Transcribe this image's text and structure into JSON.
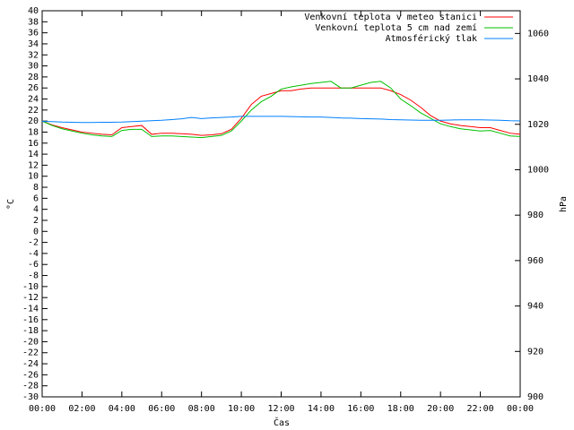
{
  "chart_data": {
    "type": "line",
    "x_label": "Čas",
    "y_label": "°C",
    "y2_label": "hPa",
    "x": [
      0,
      0.5,
      1,
      1.5,
      2,
      2.5,
      3,
      3.5,
      4,
      4.5,
      5,
      5.5,
      6,
      6.5,
      7,
      7.5,
      8,
      8.5,
      9,
      9.5,
      10,
      10.5,
      11,
      11.5,
      12,
      12.5,
      13,
      13.5,
      14,
      14.5,
      15,
      15.5,
      16,
      16.5,
      17,
      17.5,
      18,
      18.5,
      19,
      19.5,
      20,
      20.5,
      21,
      21.5,
      22,
      22.5,
      23,
      23.5,
      24
    ],
    "xlim": [
      0,
      24
    ],
    "xticks": [
      {
        "value": 0,
        "label": "00:00"
      },
      {
        "value": 2,
        "label": "02:00"
      },
      {
        "value": 4,
        "label": "04:00"
      },
      {
        "value": 6,
        "label": "06:00"
      },
      {
        "value": 8,
        "label": "08:00"
      },
      {
        "value": 10,
        "label": "10:00"
      },
      {
        "value": 12,
        "label": "12:00"
      },
      {
        "value": 14,
        "label": "14:00"
      },
      {
        "value": 16,
        "label": "16:00"
      },
      {
        "value": 18,
        "label": "18:00"
      },
      {
        "value": 20,
        "label": "20:00"
      },
      {
        "value": 22,
        "label": "22:00"
      },
      {
        "value": 24,
        "label": "00:00"
      }
    ],
    "ylim": [
      -30,
      40
    ],
    "yticks": [
      -30,
      -28,
      -26,
      -24,
      -22,
      -20,
      -18,
      -16,
      -14,
      -12,
      -10,
      -8,
      -6,
      -4,
      -2,
      0,
      2,
      4,
      6,
      8,
      10,
      12,
      14,
      16,
      18,
      20,
      22,
      24,
      26,
      28,
      30,
      32,
      34,
      36,
      38,
      40
    ],
    "y2lim": [
      900,
      1070
    ],
    "y2ticks": [
      900,
      920,
      940,
      960,
      980,
      1000,
      1020,
      1040,
      1060
    ],
    "legend": "top-right",
    "series": [
      {
        "name": "Venkovní teplota v meteo stanici",
        "color": "#ff0000",
        "values": [
          20,
          19.3,
          18.8,
          18.4,
          18.0,
          17.8,
          17.6,
          17.5,
          18.8,
          19.0,
          19.2,
          17.6,
          17.8,
          17.8,
          17.7,
          17.6,
          17.4,
          17.5,
          17.7,
          18.5,
          20.5,
          23,
          24.5,
          25,
          25.5,
          25.5,
          25.8,
          26,
          26,
          26,
          26,
          26,
          26,
          26,
          26,
          25.5,
          24.8,
          23.8,
          22.5,
          21,
          20,
          19.5,
          19.2,
          19,
          18.8,
          18.8,
          18.3,
          17.8,
          17.6
        ]
      },
      {
        "name": "Venkovní teplota 5 cm nad zemí",
        "color": "#00c000",
        "values": [
          20,
          19.2,
          18.6,
          18.2,
          17.8,
          17.5,
          17.3,
          17.2,
          18.3,
          18.5,
          18.5,
          17.2,
          17.3,
          17.3,
          17.2,
          17.1,
          17.0,
          17.2,
          17.4,
          18.2,
          20,
          22,
          23.5,
          24.5,
          25.8,
          26.2,
          26.5,
          26.8,
          27,
          27.2,
          26,
          26,
          26.5,
          27,
          27.2,
          26,
          24,
          22.8,
          21.5,
          20.5,
          19.5,
          19,
          18.6,
          18.4,
          18.2,
          18.3,
          17.8,
          17.3,
          17.2
        ]
      },
      {
        "name": "Atmosférický tlak",
        "color": "#0080ff",
        "axis": "y2",
        "values": [
          1021.3,
          1021.2,
          1021.0,
          1020.9,
          1020.8,
          1020.8,
          1020.9,
          1020.9,
          1021.0,
          1021.2,
          1021.4,
          1021.6,
          1021.8,
          1022.1,
          1022.4,
          1023.0,
          1022.5,
          1022.8,
          1023.0,
          1023.2,
          1023.5,
          1023.5,
          1023.5,
          1023.5,
          1023.5,
          1023.4,
          1023.3,
          1023.2,
          1023.2,
          1023.0,
          1022.8,
          1022.7,
          1022.5,
          1022.4,
          1022.3,
          1022.1,
          1022.0,
          1021.9,
          1021.8,
          1021.8,
          1021.8,
          1021.9,
          1022.0,
          1022.0,
          1022.0,
          1021.9,
          1021.8,
          1021.6,
          1021.5
        ]
      }
    ]
  }
}
